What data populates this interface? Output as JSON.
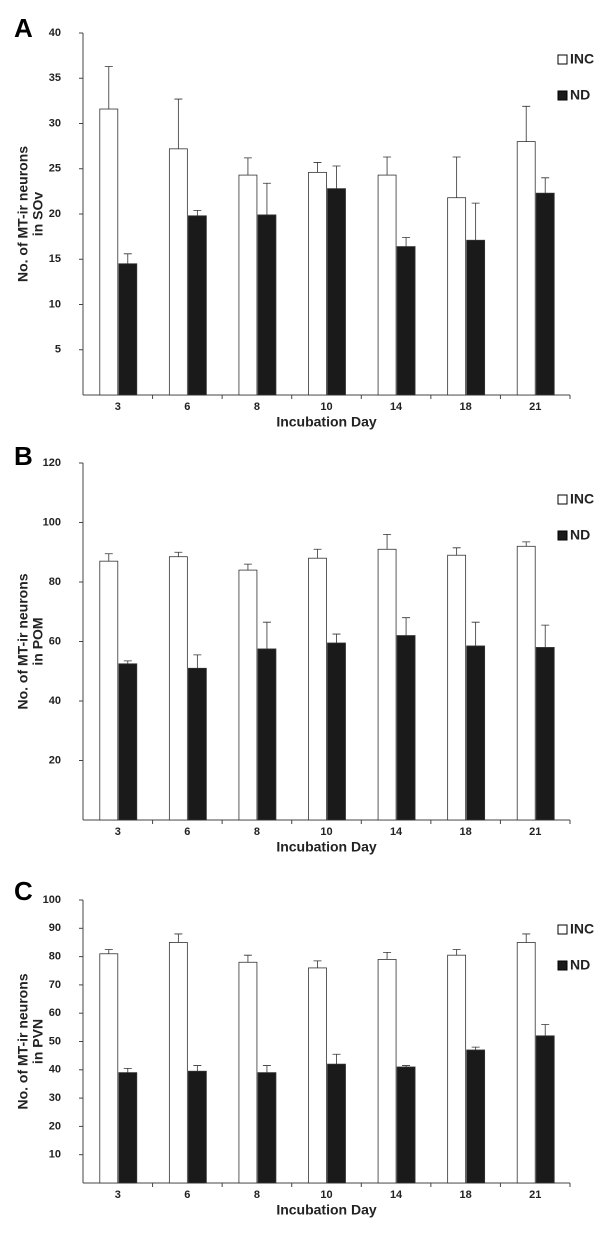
{
  "chart_data": [
    {
      "type": "bar",
      "panel_label": "A",
      "y_label": [
        "No. of MT-ir neurons",
        "in SOv"
      ],
      "x_label": "Incubation Day",
      "categories": [
        "3",
        "6",
        "8",
        "10",
        "14",
        "18",
        "21"
      ],
      "series": [
        {
          "name": "INC",
          "color": "#ffffff",
          "values": [
            31.6,
            27.2,
            24.3,
            24.6,
            24.3,
            21.8,
            28.0
          ],
          "errors": [
            4.7,
            5.5,
            1.9,
            1.1,
            2.0,
            4.5,
            3.9
          ]
        },
        {
          "name": "ND",
          "color": "#1a1a1a",
          "values": [
            14.5,
            19.8,
            19.9,
            22.8,
            16.4,
            17.1,
            22.3
          ],
          "errors": [
            1.1,
            0.6,
            3.5,
            2.5,
            1.0,
            4.1,
            1.7
          ]
        }
      ],
      "ylim": [
        0,
        40
      ],
      "yticks": [
        5,
        10,
        15,
        20,
        25,
        30,
        35,
        40
      ]
    },
    {
      "type": "bar",
      "panel_label": "B",
      "y_label": [
        "No. of MT-ir neurons",
        "in POM"
      ],
      "x_label": "Incubation Day",
      "categories": [
        "3",
        "6",
        "8",
        "10",
        "14",
        "18",
        "21"
      ],
      "series": [
        {
          "name": "INC",
          "color": "#ffffff",
          "values": [
            87,
            88.5,
            84,
            88,
            91,
            89,
            92
          ],
          "errors": [
            2.5,
            1.5,
            2,
            3,
            5,
            2.5,
            1.5
          ]
        },
        {
          "name": "ND",
          "color": "#1a1a1a",
          "values": [
            52.5,
            51,
            57.5,
            59.5,
            62,
            58.5,
            58
          ],
          "errors": [
            1,
            4.5,
            9,
            3,
            6,
            8,
            7.5
          ]
        }
      ],
      "ylim": [
        0,
        120
      ],
      "yticks": [
        20,
        40,
        60,
        80,
        100,
        120
      ]
    },
    {
      "type": "bar",
      "panel_label": "C",
      "y_label": [
        "No. of MT-ir neurons",
        "in PVN"
      ],
      "x_label": "Incubation Day",
      "categories": [
        "3",
        "6",
        "8",
        "10",
        "14",
        "18",
        "21"
      ],
      "series": [
        {
          "name": "INC",
          "color": "#ffffff",
          "values": [
            81,
            85,
            78,
            76,
            79,
            80.5,
            85
          ],
          "errors": [
            1.5,
            3,
            2.5,
            2.5,
            2.5,
            2,
            3
          ]
        },
        {
          "name": "ND",
          "color": "#1a1a1a",
          "values": [
            39,
            39.5,
            39,
            42,
            41,
            47,
            52
          ],
          "errors": [
            1.5,
            2,
            2.5,
            3.5,
            0.5,
            1,
            4
          ]
        }
      ],
      "ylim": [
        0,
        100
      ],
      "yticks": [
        10,
        20,
        30,
        40,
        50,
        60,
        70,
        80,
        90,
        100
      ]
    }
  ]
}
